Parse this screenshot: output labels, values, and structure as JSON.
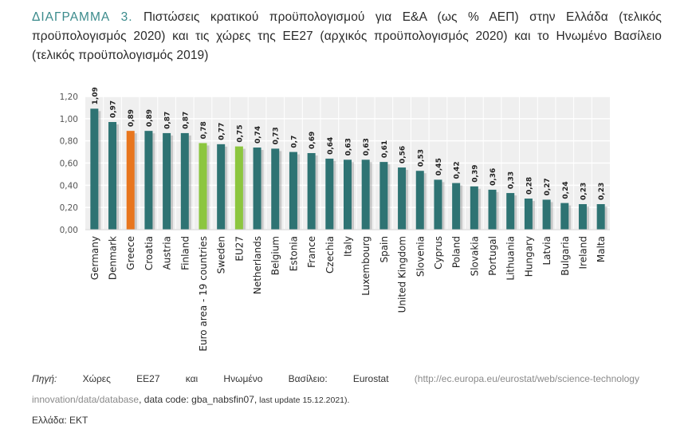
{
  "title": {
    "lead": "ΔΙΑΓΡΑΜΜΑ 3.",
    "text": "Πιστώσεις κρατικού προϋπολογισμού για Ε&Α (ως % ΑΕΠ) στην Ελλάδα (τελικός προϋπολογισμός 2020) και τις χώρες της ΕΕ27 (αρχικός προϋπολογισμός 2020) και το Ηνωμένο Βασίλειο (τελικός προϋπολογισμός 2019)"
  },
  "colors": {
    "default_bar": "#2e7373",
    "greece": "#e8761e",
    "aggregates": "#8cc63f",
    "title_accent": "#3b8b8c",
    "plot_bg": "#efefef",
    "grid": "#ffffff"
  },
  "chart_data": {
    "type": "bar",
    "title": "",
    "xlabel": "",
    "ylabel": "",
    "ylim": [
      0,
      1.2
    ],
    "yticks": [
      "0,00",
      "0,20",
      "0,40",
      "0,60",
      "0,80",
      "1,00",
      "1,20"
    ],
    "grid": true,
    "categories": [
      "Germany",
      "Denmark",
      "Greece",
      "Croatia",
      "Austria",
      "Finland",
      "Euro area - 19 countries",
      "Sweden",
      "EU27",
      "Netherlands",
      "Belgium",
      "Estonia",
      "France",
      "Czechia",
      "Italy",
      "Luxembourg",
      "Spain",
      "United Kingdom",
      "Slovenia",
      "Cyprus",
      "Poland",
      "Slovakia",
      "Portugal",
      "Lithuania",
      "Hungary",
      "Latvia",
      "Bulgaria",
      "Ireland",
      "Malta"
    ],
    "values": [
      1.09,
      0.97,
      0.89,
      0.89,
      0.87,
      0.87,
      0.78,
      0.77,
      0.75,
      0.74,
      0.73,
      0.7,
      0.69,
      0.64,
      0.63,
      0.63,
      0.61,
      0.56,
      0.53,
      0.45,
      0.42,
      0.39,
      0.36,
      0.33,
      0.28,
      0.27,
      0.24,
      0.23,
      0.23
    ],
    "value_labels": [
      "1,09",
      "0,97",
      "0,89",
      "0,89",
      "0,87",
      "0,87",
      "0,78",
      "0,77",
      "0,75",
      "0,74",
      "0,73",
      "0,7",
      "0,69",
      "0,64",
      "0,63",
      "0,63",
      "0,61",
      "0,56",
      "0,53",
      "0,45",
      "0,42",
      "0,39",
      "0,36",
      "0,33",
      "0,28",
      "0,27",
      "0,24",
      "0,23",
      "0,23"
    ],
    "highlight": {
      "Greece": "greece",
      "Euro area - 19 countries": "aggregates",
      "EU27": "aggregates"
    }
  },
  "source": {
    "label": "Πηγή:",
    "words": [
      "Χώρες",
      "ΕΕ27",
      "και",
      "Ηνωμένο",
      "Βασίλειο:",
      "Eurostat"
    ],
    "url_part1": "(http://ec.europa.eu/eurostat/web/science-technology",
    "url_part2": "innovation/data/database",
    "data_code": ", data code: gba_nabsfin07,",
    "last_update": " last update 15.12.2021).",
    "greece_source": "Ελλάδα: ΕΚΤ"
  }
}
